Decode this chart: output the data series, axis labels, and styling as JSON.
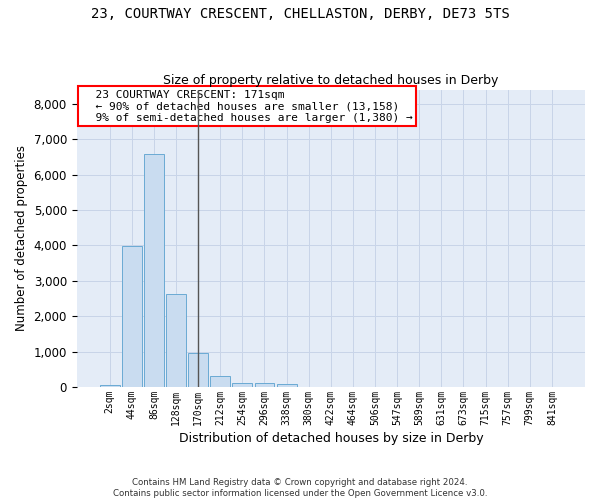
{
  "title": "23, COURTWAY CRESCENT, CHELLASTON, DERBY, DE73 5TS",
  "subtitle": "Size of property relative to detached houses in Derby",
  "xlabel": "Distribution of detached houses by size in Derby",
  "ylabel": "Number of detached properties",
  "footer_line1": "Contains HM Land Registry data © Crown copyright and database right 2024.",
  "footer_line2": "Contains public sector information licensed under the Open Government Licence v3.0.",
  "bar_labels": [
    "2sqm",
    "44sqm",
    "86sqm",
    "128sqm",
    "170sqm",
    "212sqm",
    "254sqm",
    "296sqm",
    "338sqm",
    "380sqm",
    "422sqm",
    "464sqm",
    "506sqm",
    "547sqm",
    "589sqm",
    "631sqm",
    "673sqm",
    "715sqm",
    "757sqm",
    "799sqm",
    "841sqm"
  ],
  "bar_values": [
    70,
    3980,
    6570,
    2620,
    950,
    320,
    125,
    110,
    90,
    0,
    0,
    0,
    0,
    0,
    0,
    0,
    0,
    0,
    0,
    0,
    0
  ],
  "bar_color": "#c9dcf0",
  "bar_edge_color": "#6aaad4",
  "grid_color": "#c8d4e8",
  "background_color": "#e4ecf7",
  "annotation_line1": "23 COURTWAY CRESCENT: 171sqm",
  "annotation_line2": "← 90% of detached houses are smaller (13,158)",
  "annotation_line3": "9% of semi-detached houses are larger (1,380) →",
  "vline_bar_index": 4,
  "ylim": [
    0,
    8400
  ],
  "yticks": [
    0,
    1000,
    2000,
    3000,
    4000,
    5000,
    6000,
    7000,
    8000
  ]
}
